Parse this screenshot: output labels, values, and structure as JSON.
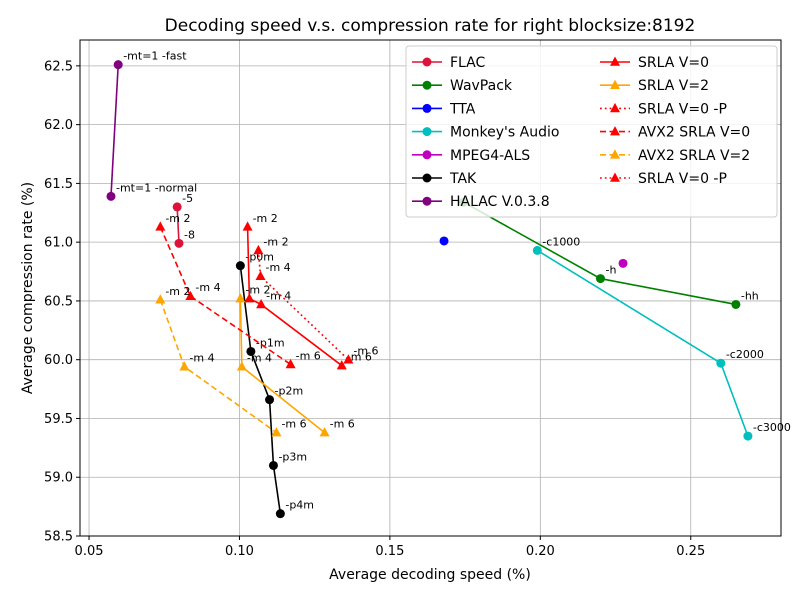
{
  "chart_data": {
    "type": "line",
    "title": "Decoding speed v.s. compression rate for right blocksize:8192",
    "xlabel": "Average decoding speed (%)",
    "ylabel": "Average compression rate (%)",
    "xlim": [
      0.047,
      0.28
    ],
    "ylim": [
      58.5,
      62.72
    ],
    "xticks": [
      "0.05",
      "0.10",
      "0.15",
      "0.20",
      "0.25"
    ],
    "xtick_values": [
      0.05,
      0.1,
      0.15,
      0.2,
      0.25
    ],
    "yticks": [
      "58.5",
      "59.0",
      "59.5",
      "60.0",
      "60.5",
      "61.0",
      "61.5",
      "62.0",
      "62.5"
    ],
    "ytick_values": [
      58.5,
      59.0,
      59.5,
      60.0,
      60.5,
      61.0,
      61.5,
      62.0,
      62.5
    ],
    "grid": true,
    "legend_position": "top-right",
    "legend_columns": 2,
    "series": [
      {
        "name": "FLAC",
        "color": "#dc143c",
        "marker": "circle",
        "line": "solid",
        "x": [
          0.0793,
          0.0799
        ],
        "y": [
          61.3,
          60.99
        ],
        "labels": [
          "-5",
          "-8"
        ]
      },
      {
        "name": "WavPack",
        "color": "#008000",
        "marker": "circle",
        "line": "solid",
        "x": [
          0.1745,
          0.22,
          0.265
        ],
        "y": [
          61.34,
          60.69,
          60.47
        ],
        "labels": [
          "",
          "-h",
          "-hh"
        ]
      },
      {
        "name": "TTA",
        "color": "#0000ff",
        "marker": "circle",
        "line": "none",
        "x": [
          0.168
        ],
        "y": [
          61.01
        ],
        "labels": [
          ""
        ]
      },
      {
        "name": "Monkey's Audio",
        "color": "#00bfbf",
        "marker": "circle",
        "line": "solid",
        "x": [
          0.199,
          0.26,
          0.269
        ],
        "y": [
          60.93,
          59.97,
          59.35
        ],
        "labels": [
          "-c1000",
          "-c2000",
          "-c3000"
        ]
      },
      {
        "name": "MPEG4-ALS",
        "color": "#bf00bf",
        "marker": "circle",
        "line": "none",
        "x": [
          0.2275
        ],
        "y": [
          60.82
        ],
        "labels": [
          ""
        ]
      },
      {
        "name": "TAK",
        "color": "#000000",
        "marker": "circle",
        "line": "solid",
        "x": [
          0.1003,
          0.1038,
          0.11,
          0.1113,
          0.1136
        ],
        "y": [
          60.8,
          60.07,
          59.66,
          59.1,
          58.69
        ],
        "labels": [
          "-p0m",
          "-p1m",
          "-p2m",
          "-p3m",
          "-p4m"
        ]
      },
      {
        "name": "HALAC V.0.3.8",
        "color": "#800080",
        "marker": "circle",
        "line": "solid",
        "x": [
          0.0573,
          0.0597
        ],
        "y": [
          61.39,
          62.51
        ],
        "labels": [
          "-mt=1 -normal",
          "-mt=1 -fast"
        ]
      },
      {
        "name": "SRLA V=0",
        "color": "#ff0000",
        "marker": "triangle",
        "line": "solid",
        "x": [
          0.1027,
          0.1033,
          0.1072,
          0.134
        ],
        "y": [
          61.13,
          60.52,
          60.47,
          59.95
        ],
        "labels": [
          "-m 2",
          "",
          "-m 4",
          "-m 6"
        ]
      },
      {
        "name": "SRLA V=2",
        "color": "#ffa500",
        "marker": "triangle",
        "line": "solid",
        "x": [
          0.1003,
          0.1008,
          0.1283
        ],
        "y": [
          60.52,
          59.94,
          59.38
        ],
        "labels": [
          "-m 2",
          "-m 4",
          "-m 6"
        ]
      },
      {
        "name": "SRLA V=0 -P",
        "color": "#ff0000",
        "marker": "triangle",
        "line": "dotted",
        "x": [
          0.1063,
          0.107,
          0.1362
        ],
        "y": [
          60.93,
          60.71,
          60.0
        ],
        "labels": [
          "-m 2",
          "-m 4",
          "-m 6"
        ]
      },
      {
        "name": "AVX2 SRLA V=0",
        "color": "#ff0000",
        "marker": "triangle",
        "line": "dashed",
        "x": [
          0.0737,
          0.0837,
          0.117
        ],
        "y": [
          61.13,
          60.54,
          59.96
        ],
        "labels": [
          "-m 2",
          "-m 4",
          "-m 6"
        ]
      },
      {
        "name": "AVX2 SRLA V=2",
        "color": "#ffa500",
        "marker": "triangle",
        "line": "dashed",
        "x": [
          0.0737,
          0.0817,
          0.1123
        ],
        "y": [
          60.51,
          59.94,
          59.38
        ],
        "labels": [
          "-m 2",
          "-m 4",
          "-m 6"
        ]
      },
      {
        "name": "SRLA V=0 -P",
        "color": "#ff0000",
        "marker": "triangle",
        "line": "dotted",
        "x": [],
        "y": [],
        "labels": []
      }
    ]
  }
}
